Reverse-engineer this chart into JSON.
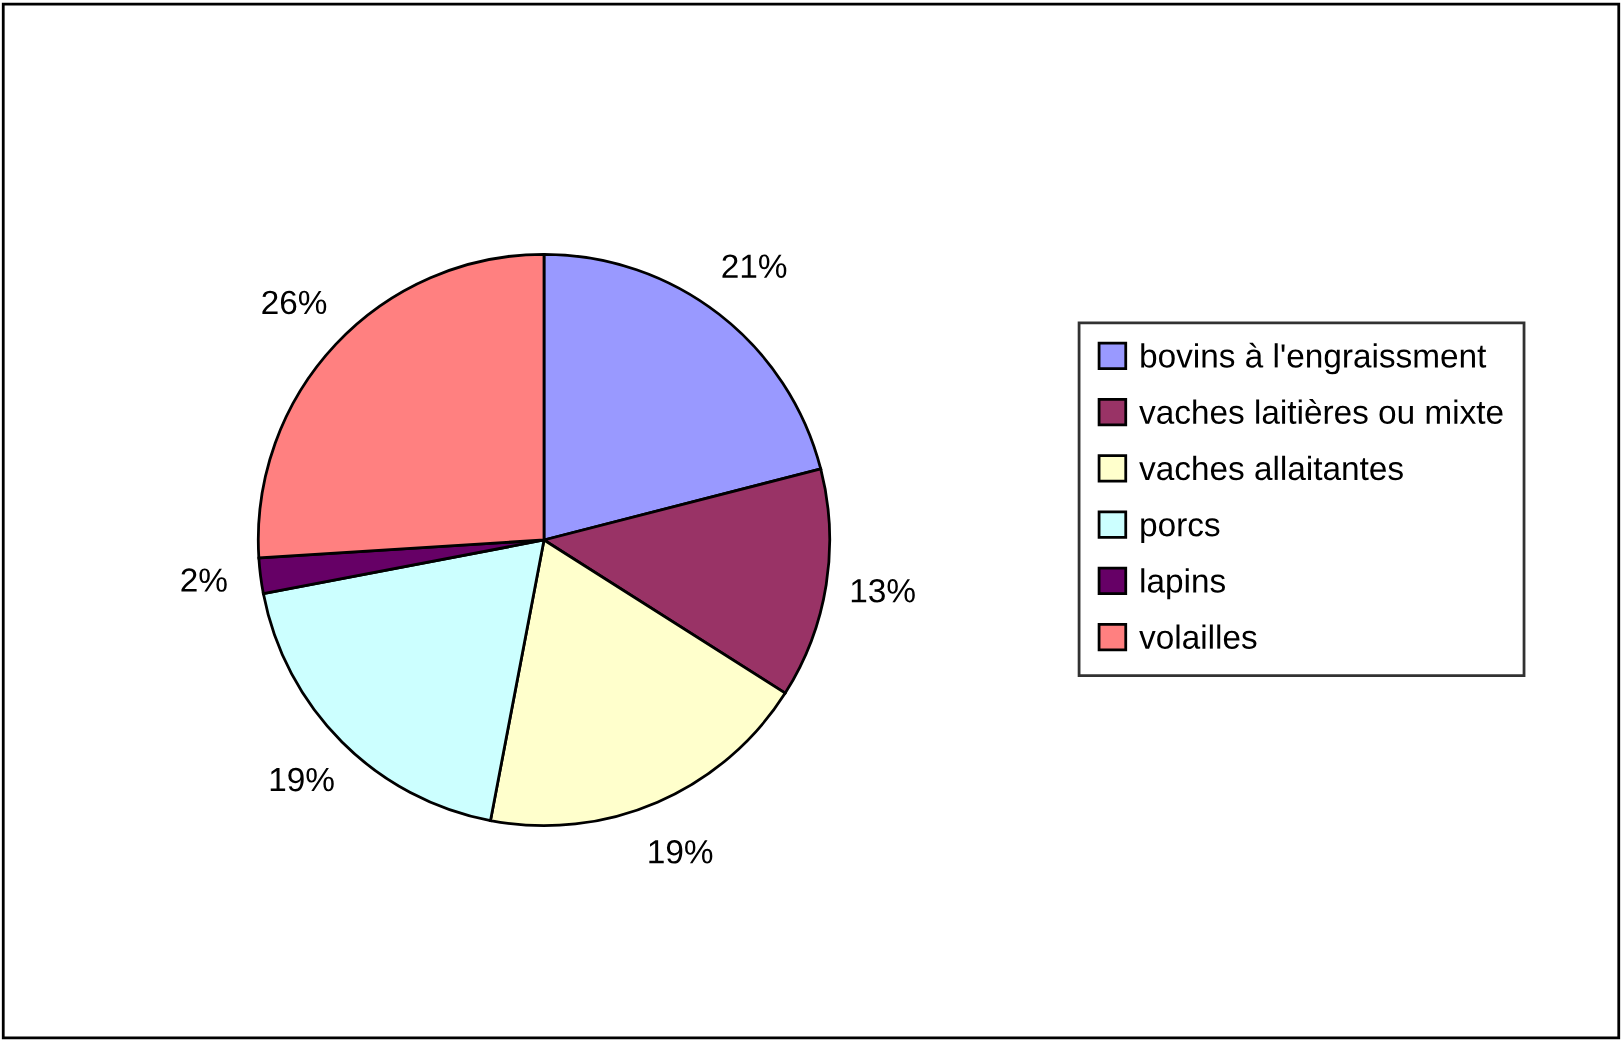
{
  "chart_data": {
    "type": "pie",
    "categories": [
      "bovins à l'engraissment",
      "vaches laitières ou mixte",
      "vaches allaitantes",
      "porcs",
      "lapins",
      "volailles"
    ],
    "values": [
      21,
      13,
      19,
      19,
      2,
      26
    ],
    "colors": [
      "#9999ff",
      "#993366",
      "#ffffcc",
      "#ccffff",
      "#660066",
      "#ff8080"
    ],
    "value_labels": [
      "21%",
      "13%",
      "19%",
      "19%",
      "2%",
      "26%"
    ],
    "legend": "right"
  }
}
